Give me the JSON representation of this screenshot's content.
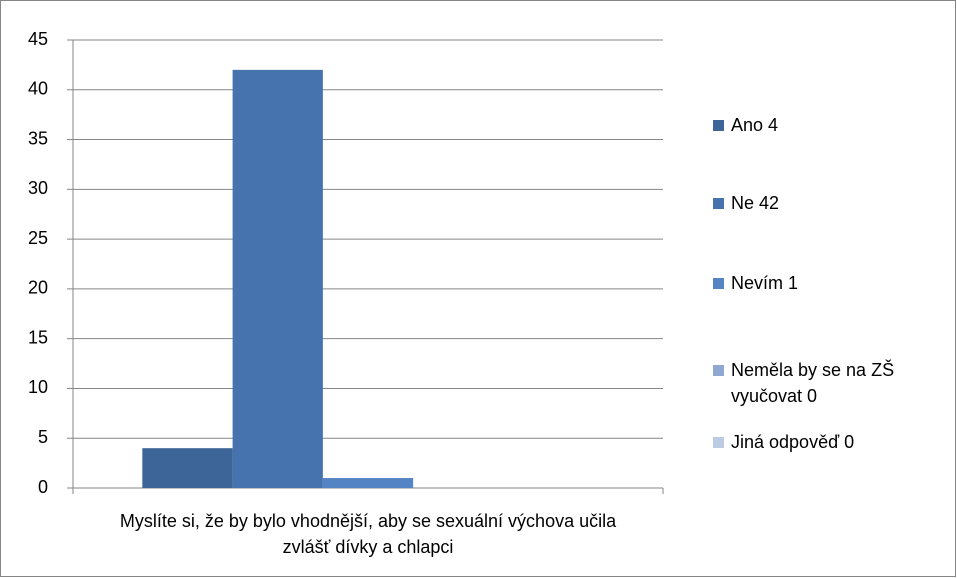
{
  "chart_data": {
    "type": "bar",
    "categories": [
      "Myslíte si, že by bylo vhodnější, aby se sexuální výchova učila zvlášť dívky a chlapci"
    ],
    "series": [
      {
        "name": "Ano   4",
        "color": "#3d6597",
        "values": [
          4
        ]
      },
      {
        "name": "Ne   42",
        "color": "#4673ae",
        "values": [
          42
        ]
      },
      {
        "name": "Nevím  1",
        "color": "#5484c4",
        "values": [
          1
        ]
      },
      {
        "name": "Neměla by se na ZŠ vyučovat 0",
        "color": "#8ea8d2",
        "values": [
          0
        ]
      },
      {
        "name": "Jiná odpověď  0",
        "color": "#bccbe4",
        "values": [
          0
        ]
      }
    ],
    "ylim": [
      0,
      45
    ],
    "yticks": [
      0,
      5,
      10,
      15,
      20,
      25,
      30,
      35,
      40,
      45
    ],
    "grid": true,
    "legend": "right"
  }
}
